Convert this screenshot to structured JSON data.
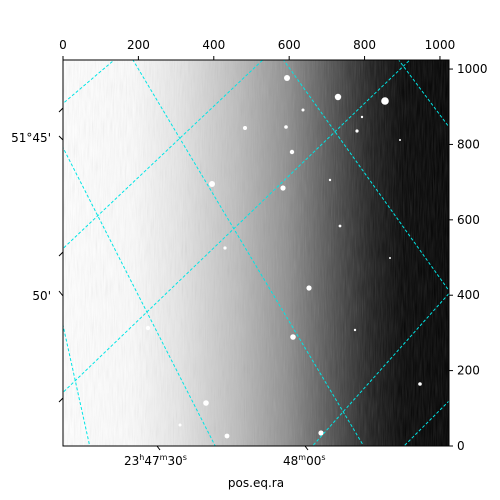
{
  "chart_data": {
    "type": "image",
    "xlabel": "pos.eq.ra",
    "pixel_axes": {
      "top_x": {
        "range": [
          0,
          1024
        ],
        "ticks": [
          0,
          200,
          400,
          600,
          800,
          1000
        ],
        "tick_labels": [
          "0",
          "200",
          "400",
          "600",
          "800",
          "1000"
        ]
      },
      "right_y": {
        "range": [
          0,
          1024
        ],
        "ticks": [
          0,
          200,
          400,
          600,
          800,
          1000
        ],
        "tick_labels": [
          "0",
          "200",
          "400",
          "600",
          "800",
          "1000"
        ]
      }
    },
    "world_axes": {
      "ra_tick_labels": [
        {
          "h": "23",
          "m": "47",
          "s": "30"
        },
        {
          "m": "48",
          "s": "00"
        }
      ],
      "dec_tick_labels": [
        "51°45'",
        "50'"
      ]
    },
    "grid": true,
    "grid_color": "#00e5e5",
    "image_colormap": "gray",
    "colors": {
      "grid": "#00e5e5",
      "frame": "#000000"
    }
  }
}
